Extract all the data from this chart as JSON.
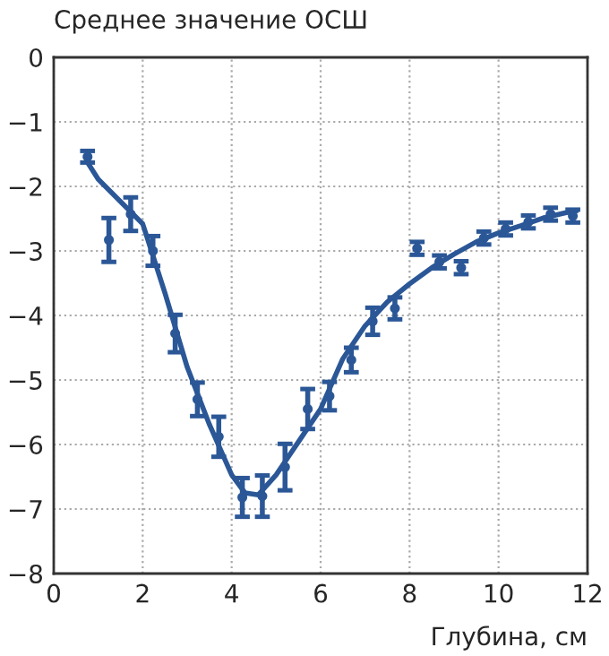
{
  "chart_data": {
    "type": "scatter",
    "ylabel": "Среднее значение ОСШ",
    "xlabel": "Глубина, см",
    "xlim": [
      0,
      12
    ],
    "ylim": [
      -8,
      0
    ],
    "xticks": [
      0,
      2,
      4,
      6,
      8,
      10,
      12
    ],
    "yticks": [
      0,
      {
        "value": -1,
        "label": "−1"
      },
      {
        "value": -2,
        "label": "−2"
      },
      {
        "value": -3,
        "label": "−3"
      },
      {
        "value": -4,
        "label": "−4"
      },
      {
        "value": -5,
        "label": "−5"
      },
      {
        "value": -6,
        "label": "−6"
      },
      {
        "value": -7,
        "label": "−7"
      },
      {
        "value": -8,
        "label": "−8"
      }
    ],
    "grid": true,
    "legend": false,
    "series": [
      {
        "marker": "circle",
        "color": "#2b5797",
        "x": [
          0.76,
          1.24,
          1.73,
          2.23,
          2.73,
          3.23,
          3.71,
          4.24,
          4.69,
          5.2,
          5.71,
          6.2,
          6.69,
          7.17,
          7.67,
          8.17,
          8.67,
          9.16,
          9.67,
          10.16,
          10.67,
          11.17,
          11.67
        ],
        "values": [
          -1.54,
          -2.83,
          -2.43,
          -3.0,
          -4.28,
          -5.3,
          -5.88,
          -6.82,
          -6.8,
          -6.35,
          -5.45,
          -5.25,
          -4.69,
          -4.09,
          -3.89,
          -2.96,
          -3.17,
          -3.26,
          -2.8,
          -2.66,
          -2.55,
          -2.43,
          -2.46
        ],
        "errors": [
          0.09,
          0.34,
          0.26,
          0.23,
          0.29,
          0.26,
          0.31,
          0.3,
          0.32,
          0.36,
          0.31,
          0.22,
          0.19,
          0.21,
          0.17,
          0.1,
          0.1,
          0.1,
          0.1,
          0.1,
          0.1,
          0.1,
          0.1
        ]
      },
      {
        "type": "line",
        "line_style": "solid",
        "color": "#2b5797",
        "x": [
          0.76,
          1.0,
          2.0,
          2.5,
          3.0,
          3.5,
          4.0,
          4.3,
          4.6,
          5.0,
          5.5,
          6.0,
          6.5,
          7.0,
          7.5,
          8.0,
          8.5,
          9.0,
          9.5,
          10.0,
          10.5,
          11.0,
          11.5,
          11.75
        ],
        "values": [
          -1.63,
          -1.89,
          -2.58,
          -3.65,
          -4.8,
          -5.69,
          -6.47,
          -6.75,
          -6.78,
          -6.47,
          -5.96,
          -5.45,
          -4.67,
          -4.16,
          -3.79,
          -3.51,
          -3.26,
          -3.05,
          -2.86,
          -2.72,
          -2.61,
          -2.49,
          -2.41,
          -2.38
        ]
      }
    ]
  }
}
